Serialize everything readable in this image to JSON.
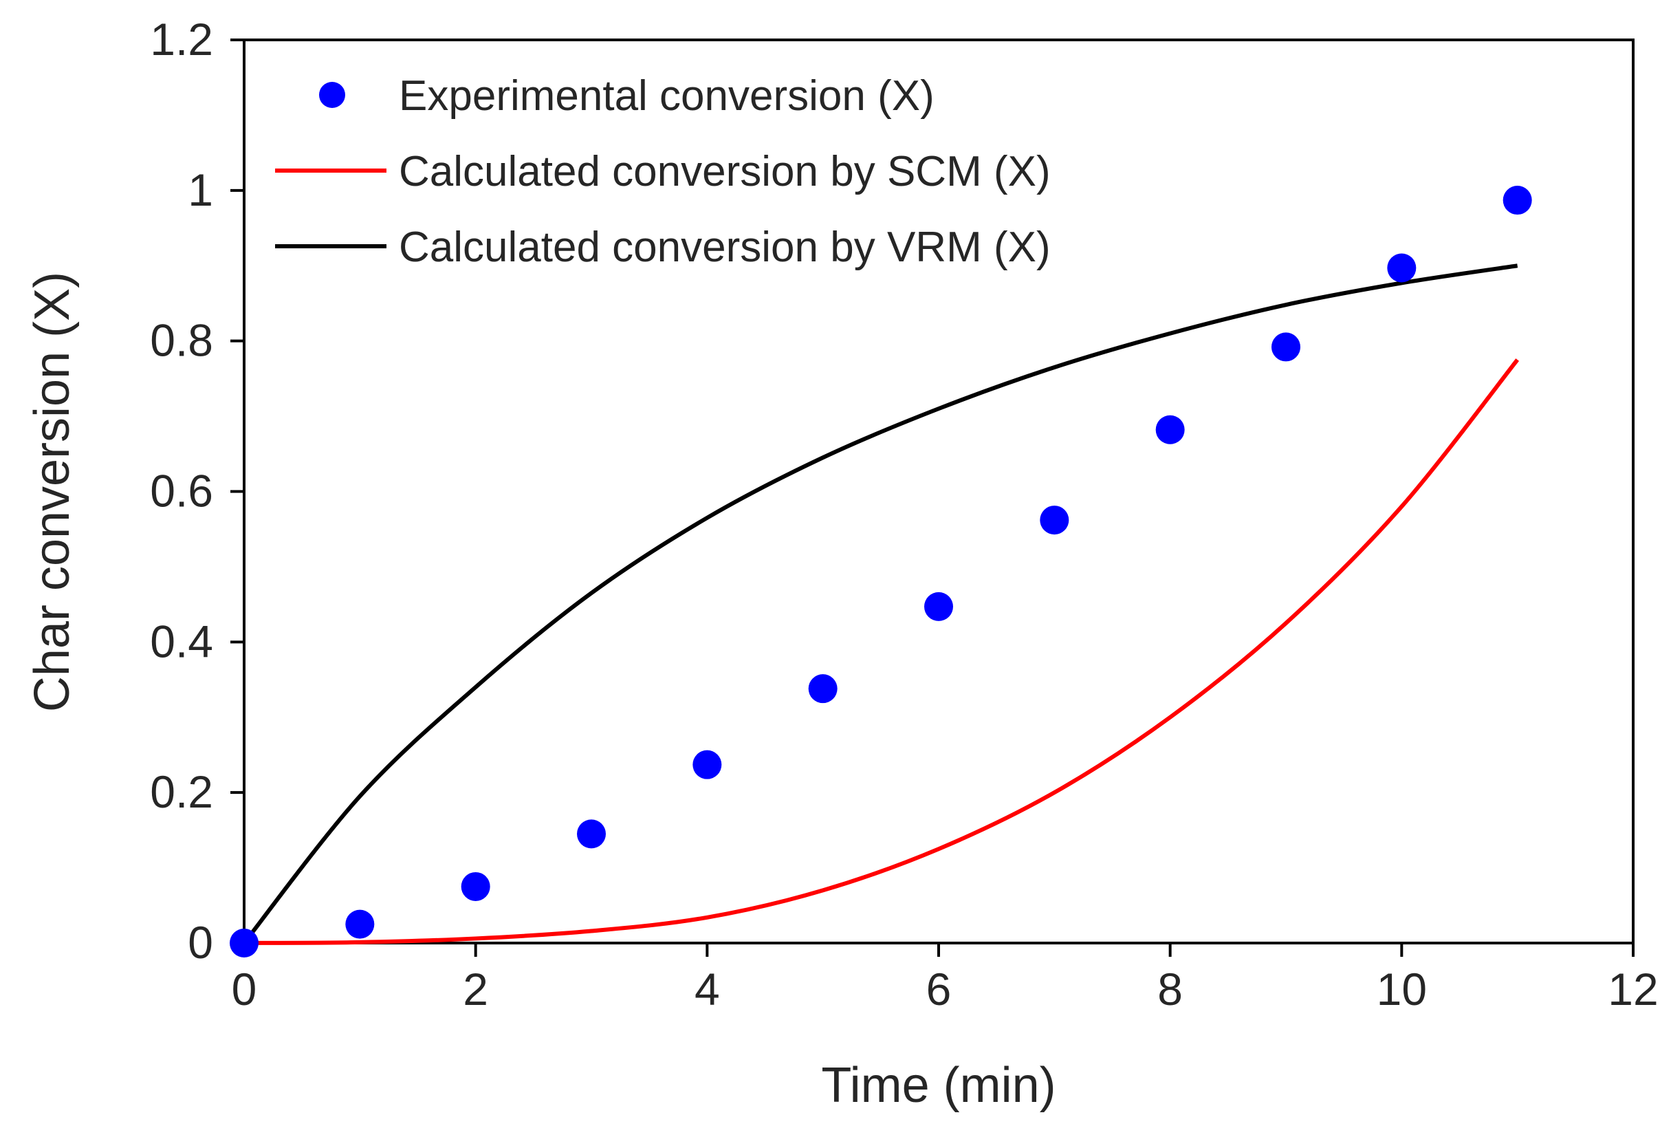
{
  "chart_data": {
    "type": "scatter",
    "title": "",
    "xlabel": "Time (min)",
    "ylabel": "Char conversion (X)",
    "xlim": [
      0,
      12
    ],
    "ylim": [
      0,
      1.2
    ],
    "xticks": [
      "0",
      "2",
      "4",
      "6",
      "8",
      "10",
      "12"
    ],
    "yticks": [
      "0",
      "0.2",
      "0.4",
      "0.6",
      "0.8",
      "1",
      "1.2"
    ],
    "legend_position": "top-left",
    "series": [
      {
        "name": "Experimental conversion (X)",
        "kind": "scatter",
        "color": "#0000ff",
        "x": [
          0,
          1,
          2,
          3,
          4,
          5,
          6,
          7,
          8,
          9,
          10,
          11
        ],
        "y": [
          0,
          0.025,
          0.075,
          0.145,
          0.237,
          0.338,
          0.447,
          0.562,
          0.682,
          0.792,
          0.897,
          0.987
        ]
      },
      {
        "name": "Calculated conversion by SCM (X)",
        "kind": "line",
        "color": "#ff0000",
        "x": [
          0,
          1,
          2,
          3,
          4,
          5,
          6,
          7,
          8,
          9,
          10,
          11
        ],
        "y": [
          0,
          0.001,
          0.006,
          0.016,
          0.034,
          0.07,
          0.125,
          0.2,
          0.3,
          0.425,
          0.58,
          0.775
        ]
      },
      {
        "name": "Calculated conversion by VRM (X)",
        "kind": "line",
        "color": "#000000",
        "x": [
          0,
          1,
          2,
          3,
          4,
          5,
          6,
          7,
          8,
          9,
          10,
          11
        ],
        "y": [
          0,
          0.195,
          0.34,
          0.465,
          0.565,
          0.645,
          0.71,
          0.765,
          0.81,
          0.848,
          0.877,
          0.9
        ]
      }
    ]
  }
}
